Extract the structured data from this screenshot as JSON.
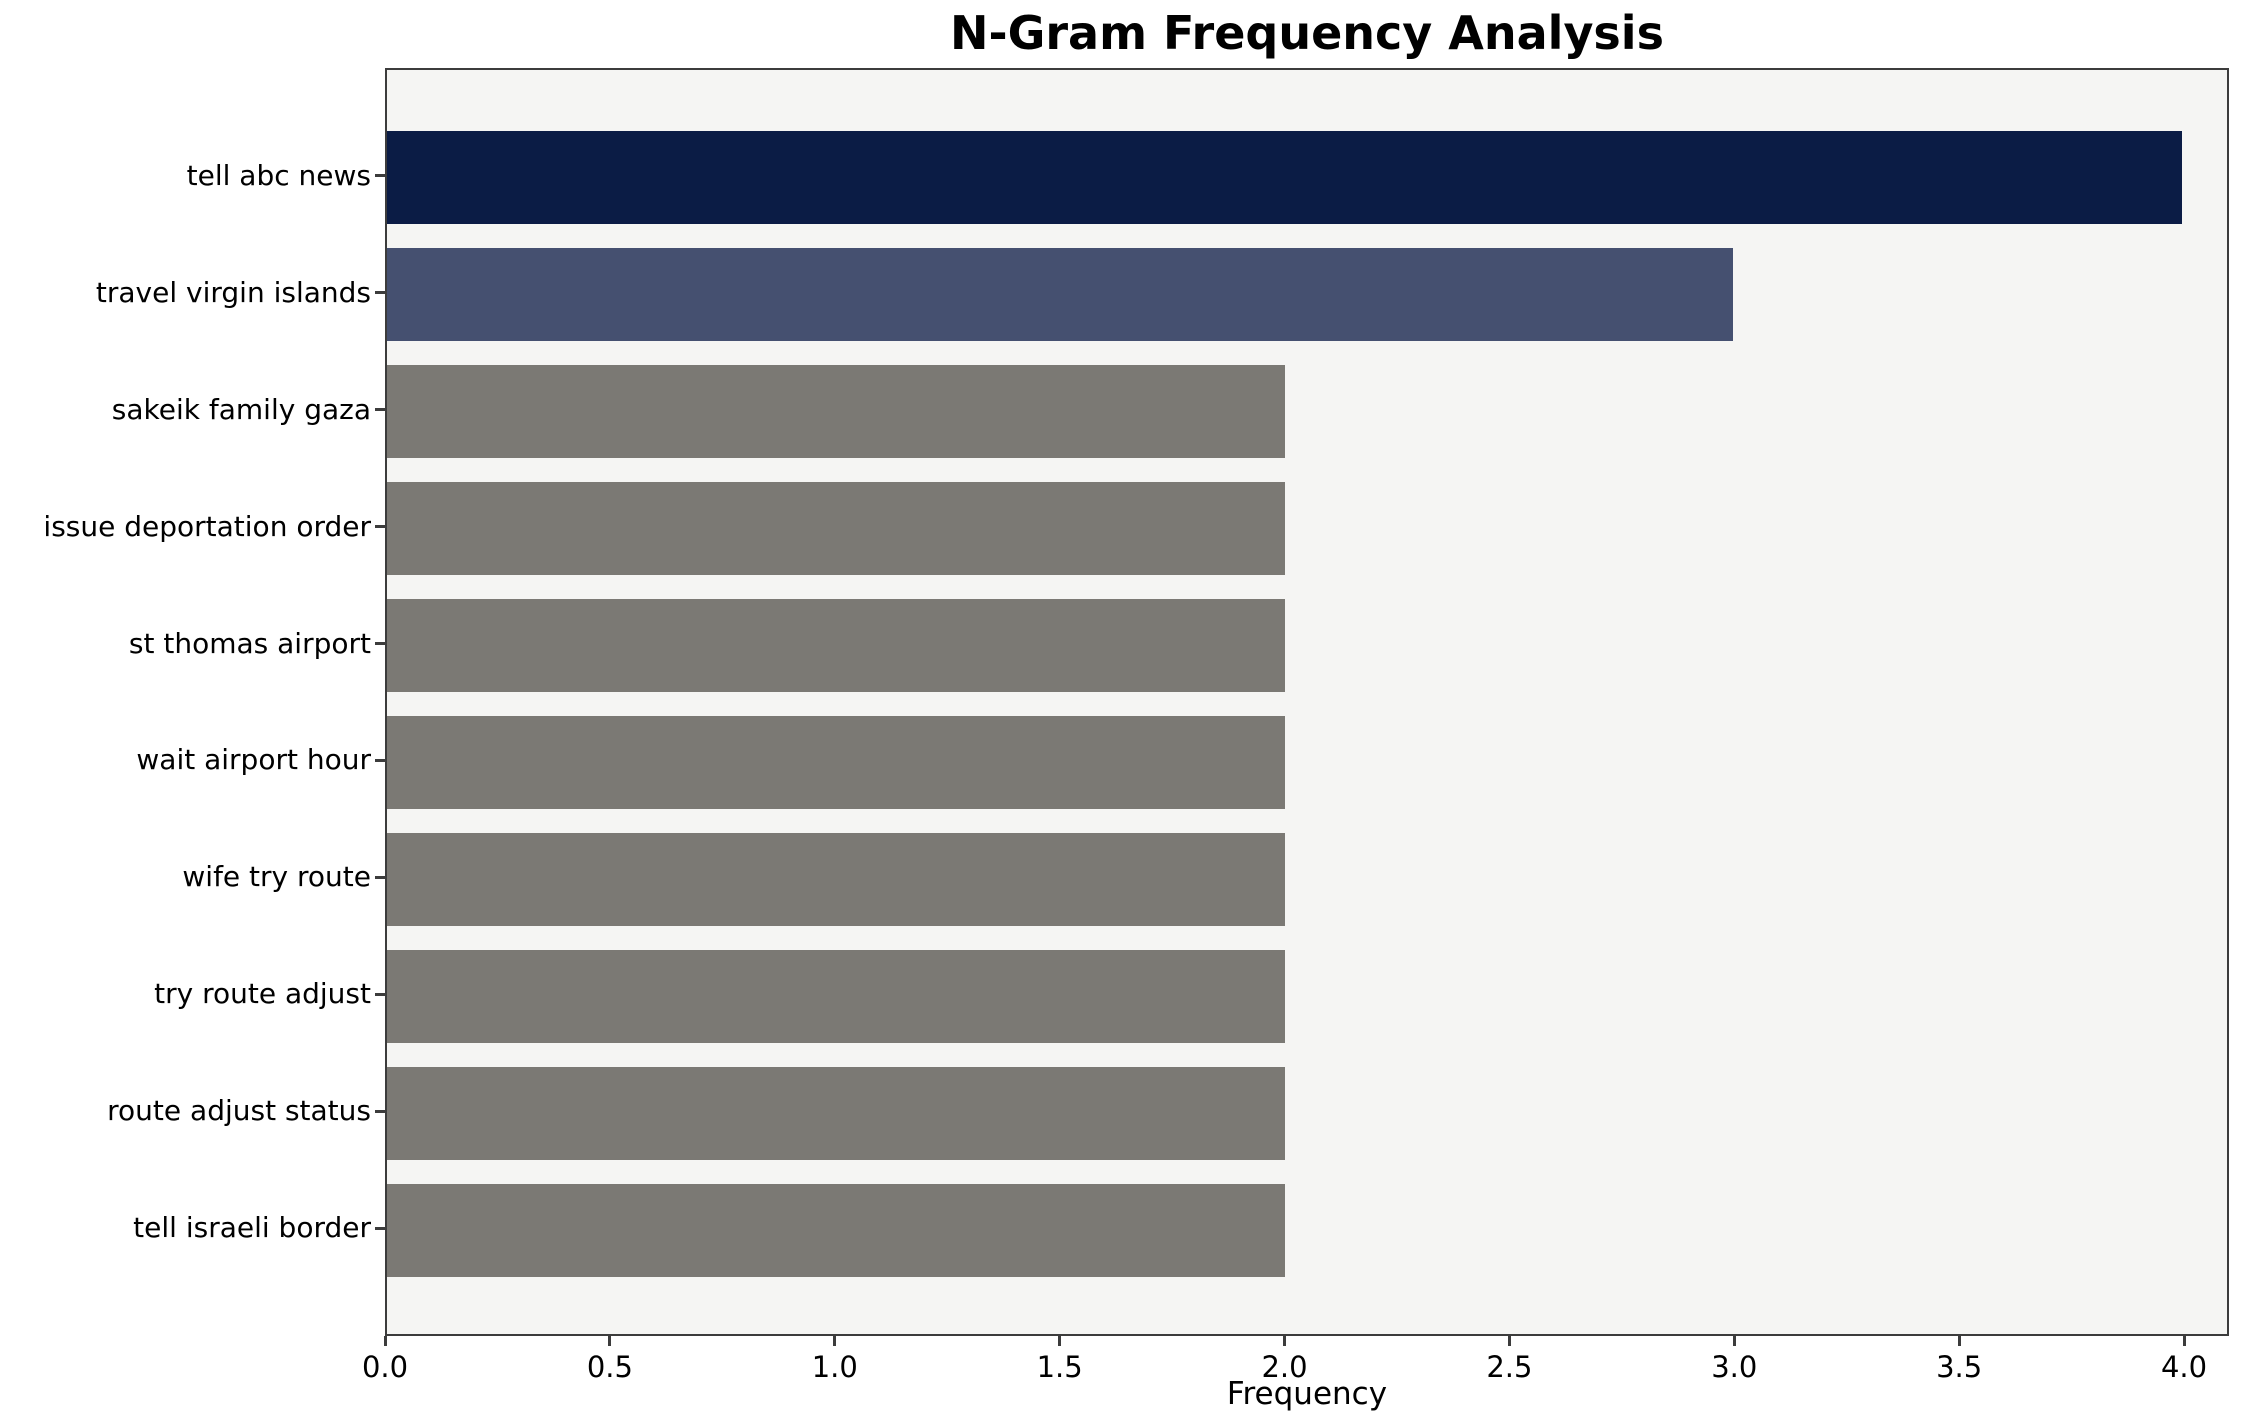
{
  "title": "N-Gram Frequency Analysis",
  "chart_data": {
    "type": "bar",
    "orientation": "horizontal",
    "title": "N-Gram Frequency Analysis",
    "xlabel": "Frequency",
    "ylabel": "",
    "categories": [
      "tell abc news",
      "travel virgin islands",
      "sakeik family gaza",
      "issue deportation order",
      "st thomas airport",
      "wait airport hour",
      "wife try route",
      "try route adjust",
      "route adjust status",
      "tell israeli border"
    ],
    "values": [
      4,
      3,
      2,
      2,
      2,
      2,
      2,
      2,
      2,
      2
    ],
    "bar_colors": [
      "#0b1c45",
      "#455070",
      "#7b7974",
      "#7b7974",
      "#7b7974",
      "#7b7974",
      "#7b7974",
      "#7b7974",
      "#7b7974",
      "#7b7974"
    ],
    "xlim": [
      0,
      4.1
    ],
    "xticks": [
      0.0,
      0.5,
      1.0,
      1.5,
      2.0,
      2.5,
      3.0,
      3.5,
      4.0
    ],
    "grid": false,
    "legend": "none",
    "plot_background": "#f5f5f3",
    "figure_background": "#ffffff",
    "spine_color": "#3c3c3c"
  }
}
